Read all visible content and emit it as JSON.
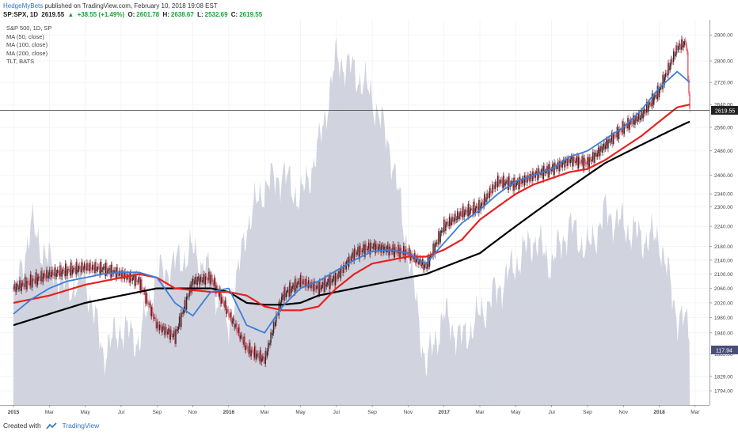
{
  "header": {
    "author": "HedgeMyBets",
    "published_text": "published on TradingView.com, February 10, 2018 19:08 EST",
    "symbol": "SP:SPX, 1D",
    "last": "2619.55",
    "change": "+38.55 (+1.49%)",
    "o_label": "O:",
    "o_value": "2601.78",
    "h_label": "H:",
    "h_value": "2638.67",
    "l_label": "L:",
    "l_value": "2532.69",
    "c_label": "C:",
    "c_value": "2619.55"
  },
  "legend": [
    "S&P 500, 1D, SP",
    "MA (50, close)",
    "MA (100, close)",
    "MA (200, close)",
    "TLT, BATS"
  ],
  "footer": {
    "created_with": "Created with",
    "brand": "TradingView"
  },
  "price_tags": {
    "spx_last": "2619.55",
    "tlt_last": "117.94"
  },
  "colors": {
    "ma50": "#3b7fd9",
    "ma100": "#e8201f",
    "ma200": "#000000",
    "tlt_area": "#c9ccd9",
    "candle_up": "#2c2c2c",
    "candle_down": "#e05a6a",
    "spx_tag": "#222222",
    "tlt_tag": "#4a4f7a"
  },
  "chart_data": {
    "type": "line",
    "x_tick_labels": [
      "2015",
      "Mar",
      "May",
      "Jul",
      "Sep",
      "Nov",
      "2016",
      "Mar",
      "May",
      "Jul",
      "Sep",
      "Nov",
      "2017",
      "Mar",
      "May",
      "Jul",
      "Sep",
      "Nov",
      "2018",
      "Mar"
    ],
    "y_tick_labels": [
      "2900.00",
      "2800.00",
      "2720.00",
      "2640.00",
      "2560.00",
      "2480.00",
      "2400.00",
      "2340.00",
      "2300.00",
      "2240.00",
      "2180.00",
      "2140.00",
      "2100.00",
      "2060.00",
      "2020.00",
      "1980.00",
      "1940.00",
      "1885.00",
      "1829.00",
      "1794.00"
    ],
    "y_scale": "log",
    "ylim": [
      1760,
      2960
    ],
    "x_unit": "months since Jan 2015",
    "xlim": [
      -0.75,
      38.8
    ],
    "series": [
      {
        "name": "MA (50, close)",
        "points": [
          [
            0,
            1990
          ],
          [
            1,
            2030
          ],
          [
            2,
            2060
          ],
          [
            3,
            2080
          ],
          [
            4,
            2090
          ],
          [
            5,
            2100
          ],
          [
            6,
            2105
          ],
          [
            7,
            2105
          ],
          [
            8,
            2090
          ],
          [
            9,
            2020
          ],
          [
            10,
            1985
          ],
          [
            11,
            2050
          ],
          [
            12,
            2060
          ],
          [
            13,
            1960
          ],
          [
            14,
            1940
          ],
          [
            15,
            2010
          ],
          [
            16,
            2060
          ],
          [
            17,
            2080
          ],
          [
            18,
            2110
          ],
          [
            19,
            2140
          ],
          [
            20,
            2165
          ],
          [
            21,
            2170
          ],
          [
            22,
            2160
          ],
          [
            23,
            2130
          ],
          [
            24,
            2190
          ],
          [
            25,
            2250
          ],
          [
            26,
            2290
          ],
          [
            27,
            2340
          ],
          [
            28,
            2380
          ],
          [
            29,
            2400
          ],
          [
            30,
            2420
          ],
          [
            31,
            2460
          ],
          [
            32,
            2480
          ],
          [
            33,
            2520
          ],
          [
            34,
            2560
          ],
          [
            35,
            2620
          ],
          [
            36,
            2700
          ],
          [
            37,
            2760
          ],
          [
            37.7,
            2720
          ]
        ]
      },
      {
        "name": "MA (100, close)",
        "points": [
          [
            0,
            2020
          ],
          [
            2,
            2040
          ],
          [
            4,
            2070
          ],
          [
            6,
            2090
          ],
          [
            7,
            2100
          ],
          [
            8,
            2090
          ],
          [
            9,
            2060
          ],
          [
            11,
            2050
          ],
          [
            12,
            2050
          ],
          [
            13,
            2040
          ],
          [
            14,
            2010
          ],
          [
            15,
            2000
          ],
          [
            16,
            2000
          ],
          [
            17,
            2010
          ],
          [
            18,
            2060
          ],
          [
            19,
            2100
          ],
          [
            20,
            2130
          ],
          [
            21,
            2140
          ],
          [
            22,
            2150
          ],
          [
            23,
            2150
          ],
          [
            24,
            2170
          ],
          [
            25,
            2200
          ],
          [
            26,
            2260
          ],
          [
            27,
            2300
          ],
          [
            28,
            2340
          ],
          [
            29,
            2370
          ],
          [
            30,
            2390
          ],
          [
            31,
            2410
          ],
          [
            32,
            2420
          ],
          [
            33,
            2450
          ],
          [
            34,
            2490
          ],
          [
            35,
            2530
          ],
          [
            36,
            2580
          ],
          [
            37,
            2630
          ],
          [
            37.7,
            2640
          ]
        ]
      },
      {
        "name": "MA (200, close)",
        "points": [
          [
            0,
            1960
          ],
          [
            2,
            1990
          ],
          [
            4,
            2020
          ],
          [
            6,
            2040
          ],
          [
            8,
            2060
          ],
          [
            9,
            2060
          ],
          [
            10,
            2060
          ],
          [
            11,
            2060
          ],
          [
            12,
            2050
          ],
          [
            13,
            2020
          ],
          [
            14,
            2015
          ],
          [
            15,
            2015
          ],
          [
            16,
            2020
          ],
          [
            17,
            2040
          ],
          [
            18,
            2050
          ],
          [
            19,
            2060
          ],
          [
            20,
            2070
          ],
          [
            21,
            2080
          ],
          [
            22,
            2090
          ],
          [
            23,
            2100
          ],
          [
            24,
            2120
          ],
          [
            25,
            2140
          ],
          [
            26,
            2160
          ],
          [
            27,
            2200
          ],
          [
            28,
            2240
          ],
          [
            29,
            2280
          ],
          [
            30,
            2320
          ],
          [
            31,
            2360
          ],
          [
            32,
            2400
          ],
          [
            33,
            2440
          ],
          [
            34,
            2470
          ],
          [
            35,
            2500
          ],
          [
            36,
            2530
          ],
          [
            37,
            2560
          ],
          [
            37.7,
            2580
          ]
        ]
      },
      {
        "name": "S&P 500, 1D, SP",
        "points": [
          [
            0,
            2060
          ],
          [
            1,
            2080
          ],
          [
            2,
            2100
          ],
          [
            3,
            2110
          ],
          [
            4,
            2120
          ],
          [
            5,
            2115
          ],
          [
            6,
            2100
          ],
          [
            7,
            2080
          ],
          [
            8,
            1960
          ],
          [
            9,
            1930
          ],
          [
            10,
            2080
          ],
          [
            11,
            2090
          ],
          [
            12,
            1990
          ],
          [
            13,
            1900
          ],
          [
            14,
            1870
          ],
          [
            15,
            2040
          ],
          [
            16,
            2080
          ],
          [
            17,
            2060
          ],
          [
            18,
            2090
          ],
          [
            19,
            2160
          ],
          [
            20,
            2180
          ],
          [
            21,
            2170
          ],
          [
            22,
            2160
          ],
          [
            23,
            2120
          ],
          [
            24,
            2240
          ],
          [
            25,
            2280
          ],
          [
            26,
            2300
          ],
          [
            27,
            2380
          ],
          [
            28,
            2370
          ],
          [
            29,
            2400
          ],
          [
            30,
            2420
          ],
          [
            31,
            2450
          ],
          [
            32,
            2440
          ],
          [
            33,
            2500
          ],
          [
            34,
            2560
          ],
          [
            35,
            2600
          ],
          [
            36,
            2690
          ],
          [
            37,
            2850
          ],
          [
            37.5,
            2872
          ],
          [
            37.7,
            2619.55
          ]
        ]
      },
      {
        "name": "TLT, BATS",
        "type": "area",
        "points": [
          [
            0,
            120
          ],
          [
            1,
            126
          ],
          [
            2,
            123
          ],
          [
            3,
            121
          ],
          [
            4,
            122
          ],
          [
            5,
            116
          ],
          [
            6,
            118
          ],
          [
            7,
            117
          ],
          [
            8,
            122
          ],
          [
            9,
            123
          ],
          [
            10,
            124
          ],
          [
            11,
            122
          ],
          [
            12,
            118
          ],
          [
            13,
            126
          ],
          [
            14,
            129
          ],
          [
            15,
            130
          ],
          [
            16,
            128
          ],
          [
            17,
            132
          ],
          [
            18,
            139
          ],
          [
            19,
            138
          ],
          [
            20,
            136
          ],
          [
            21,
            132
          ],
          [
            22,
            124
          ],
          [
            23,
            115
          ],
          [
            24,
            119
          ],
          [
            25,
            117
          ],
          [
            26,
            119
          ],
          [
            27,
            121
          ],
          [
            28,
            123
          ],
          [
            29,
            125
          ],
          [
            30,
            123
          ],
          [
            31,
            126
          ],
          [
            32,
            124
          ],
          [
            33,
            127
          ],
          [
            34,
            126
          ],
          [
            35,
            125
          ],
          [
            36,
            125
          ],
          [
            37,
            119
          ],
          [
            37.7,
            117.94
          ]
        ]
      }
    ],
    "secondary_axis": {
      "series": "TLT, BATS",
      "ylim": [
        112,
        142
      ]
    }
  }
}
